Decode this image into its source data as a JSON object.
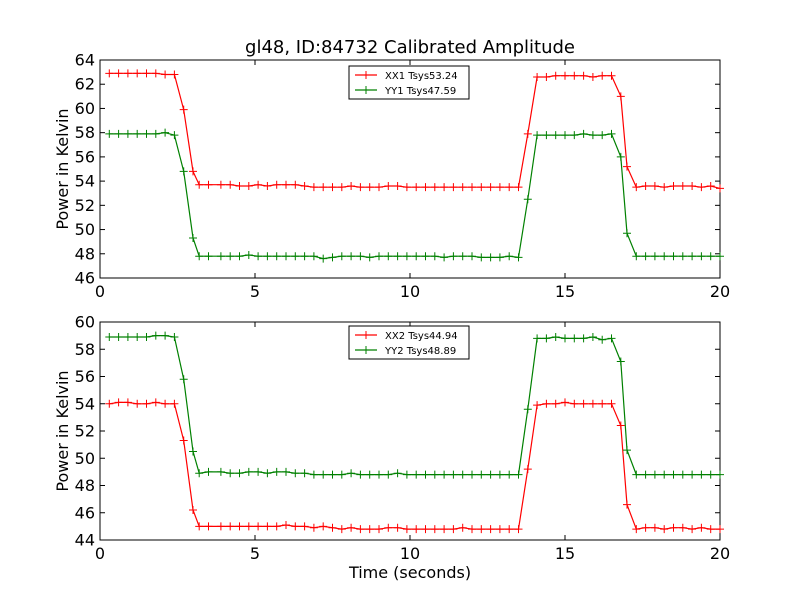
{
  "title": "gl48, ID:84732 Calibrated Amplitude",
  "chart_data": [
    {
      "type": "line",
      "title": "gl48, ID:84732 Calibrated Amplitude",
      "xlabel": "",
      "ylabel": "Power in Kelvin",
      "xlim": [
        0,
        20
      ],
      "ylim": [
        46,
        64
      ],
      "xticks": [
        "0",
        "5",
        "10",
        "15",
        "20"
      ],
      "yticks": [
        "46",
        "48",
        "50",
        "52",
        "54",
        "56",
        "58",
        "60",
        "62",
        "64"
      ],
      "legend_position": "top-center",
      "series": [
        {
          "name": "XX1 Tsys53.24",
          "color": "#ff0000",
          "x": [
            0.3,
            0.6,
            0.9,
            1.2,
            1.5,
            1.8,
            2.1,
            2.4,
            2.7,
            3.0,
            3.2,
            3.5,
            3.9,
            4.2,
            4.5,
            4.8,
            5.1,
            5.4,
            5.7,
            6.0,
            6.3,
            6.6,
            6.9,
            7.2,
            7.5,
            7.8,
            8.1,
            8.4,
            8.7,
            9.0,
            9.3,
            9.6,
            9.9,
            10.2,
            10.5,
            10.8,
            11.1,
            11.4,
            11.7,
            12.0,
            12.3,
            12.6,
            12.9,
            13.2,
            13.5,
            13.8,
            14.1,
            14.4,
            14.7,
            15.0,
            15.3,
            15.6,
            15.9,
            16.2,
            16.5,
            16.8,
            17.0,
            17.3,
            17.6,
            17.9,
            18.2,
            18.5,
            18.8,
            19.1,
            19.4,
            19.7,
            20.0
          ],
          "values": [
            62.9,
            62.9,
            62.9,
            62.9,
            62.9,
            62.9,
            62.8,
            62.8,
            59.9,
            54.8,
            53.7,
            53.7,
            53.7,
            53.7,
            53.6,
            53.6,
            53.7,
            53.6,
            53.7,
            53.7,
            53.7,
            53.6,
            53.5,
            53.5,
            53.5,
            53.5,
            53.6,
            53.5,
            53.5,
            53.5,
            53.6,
            53.6,
            53.5,
            53.5,
            53.5,
            53.5,
            53.5,
            53.5,
            53.5,
            53.5,
            53.5,
            53.5,
            53.5,
            53.5,
            53.5,
            57.9,
            62.6,
            62.6,
            62.7,
            62.7,
            62.7,
            62.7,
            62.6,
            62.7,
            62.7,
            61.0,
            55.2,
            53.5,
            53.6,
            53.6,
            53.5,
            53.6,
            53.6,
            53.6,
            53.5,
            53.6,
            53.4
          ]
        },
        {
          "name": "YY1 Tsys47.59",
          "color": "#008000",
          "x": [
            0.3,
            0.6,
            0.9,
            1.2,
            1.5,
            1.8,
            2.1,
            2.4,
            2.7,
            3.0,
            3.2,
            3.5,
            3.9,
            4.2,
            4.5,
            4.8,
            5.1,
            5.4,
            5.7,
            6.0,
            6.3,
            6.6,
            6.9,
            7.2,
            7.5,
            7.8,
            8.1,
            8.4,
            8.7,
            9.0,
            9.3,
            9.6,
            9.9,
            10.2,
            10.5,
            10.8,
            11.1,
            11.4,
            11.7,
            12.0,
            12.3,
            12.6,
            12.9,
            13.2,
            13.5,
            13.8,
            14.1,
            14.4,
            14.7,
            15.0,
            15.3,
            15.6,
            15.9,
            16.2,
            16.5,
            16.8,
            17.0,
            17.3,
            17.6,
            17.9,
            18.2,
            18.5,
            18.8,
            19.1,
            19.4,
            19.7,
            20.0
          ],
          "values": [
            57.9,
            57.9,
            57.9,
            57.9,
            57.9,
            57.9,
            58.0,
            57.8,
            54.8,
            49.3,
            47.8,
            47.8,
            47.8,
            47.8,
            47.8,
            47.9,
            47.8,
            47.8,
            47.8,
            47.8,
            47.8,
            47.8,
            47.8,
            47.6,
            47.7,
            47.8,
            47.8,
            47.8,
            47.7,
            47.8,
            47.8,
            47.8,
            47.8,
            47.8,
            47.8,
            47.8,
            47.7,
            47.8,
            47.8,
            47.8,
            47.7,
            47.7,
            47.7,
            47.8,
            47.7,
            52.5,
            57.8,
            57.8,
            57.8,
            57.8,
            57.8,
            57.9,
            57.8,
            57.8,
            57.9,
            56.0,
            49.7,
            47.8,
            47.8,
            47.8,
            47.8,
            47.8,
            47.8,
            47.8,
            47.8,
            47.8,
            47.8
          ]
        }
      ]
    },
    {
      "type": "line",
      "title": "",
      "xlabel": "Time (seconds)",
      "ylabel": "Power in Kelvin",
      "xlim": [
        0,
        20
      ],
      "ylim": [
        44,
        60
      ],
      "xticks": [
        "0",
        "5",
        "10",
        "15",
        "20"
      ],
      "yticks": [
        "44",
        "46",
        "48",
        "50",
        "52",
        "54",
        "56",
        "58",
        "60"
      ],
      "legend_position": "top-center",
      "series": [
        {
          "name": "XX2 Tsys44.94",
          "color": "#ff0000",
          "x": [
            0.3,
            0.6,
            0.9,
            1.2,
            1.5,
            1.8,
            2.1,
            2.4,
            2.7,
            3.0,
            3.2,
            3.5,
            3.9,
            4.2,
            4.5,
            4.8,
            5.1,
            5.4,
            5.7,
            6.0,
            6.3,
            6.6,
            6.9,
            7.2,
            7.5,
            7.8,
            8.1,
            8.4,
            8.7,
            9.0,
            9.3,
            9.6,
            9.9,
            10.2,
            10.5,
            10.8,
            11.1,
            11.4,
            11.7,
            12.0,
            12.3,
            12.6,
            12.9,
            13.2,
            13.5,
            13.8,
            14.1,
            14.4,
            14.7,
            15.0,
            15.3,
            15.6,
            15.9,
            16.2,
            16.5,
            16.8,
            17.0,
            17.3,
            17.6,
            17.9,
            18.2,
            18.5,
            18.8,
            19.1,
            19.4,
            19.7,
            20.0
          ],
          "values": [
            54.0,
            54.1,
            54.1,
            54.0,
            54.0,
            54.1,
            54.0,
            54.0,
            51.3,
            46.2,
            45.0,
            45.0,
            45.0,
            45.0,
            45.0,
            45.0,
            45.0,
            45.0,
            45.0,
            45.1,
            45.0,
            45.0,
            44.9,
            45.0,
            44.9,
            44.8,
            44.9,
            44.8,
            44.8,
            44.8,
            44.9,
            44.9,
            44.8,
            44.8,
            44.8,
            44.8,
            44.8,
            44.8,
            44.9,
            44.8,
            44.8,
            44.8,
            44.8,
            44.8,
            44.8,
            49.2,
            53.9,
            54.0,
            54.0,
            54.1,
            54.0,
            54.0,
            54.0,
            54.0,
            54.0,
            52.4,
            46.6,
            44.8,
            44.9,
            44.9,
            44.8,
            44.9,
            44.9,
            44.8,
            44.9,
            44.8,
            44.8
          ]
        },
        {
          "name": "YY2 Tsys48.89",
          "color": "#008000",
          "x": [
            0.3,
            0.6,
            0.9,
            1.2,
            1.5,
            1.8,
            2.1,
            2.4,
            2.7,
            3.0,
            3.2,
            3.5,
            3.9,
            4.2,
            4.5,
            4.8,
            5.1,
            5.4,
            5.7,
            6.0,
            6.3,
            6.6,
            6.9,
            7.2,
            7.5,
            7.8,
            8.1,
            8.4,
            8.7,
            9.0,
            9.3,
            9.6,
            9.9,
            10.2,
            10.5,
            10.8,
            11.1,
            11.4,
            11.7,
            12.0,
            12.3,
            12.6,
            12.9,
            13.2,
            13.5,
            13.8,
            14.1,
            14.4,
            14.7,
            15.0,
            15.3,
            15.6,
            15.9,
            16.2,
            16.5,
            16.8,
            17.0,
            17.3,
            17.6,
            17.9,
            18.2,
            18.5,
            18.8,
            19.1,
            19.4,
            19.7,
            20.0
          ],
          "values": [
            58.9,
            58.9,
            58.9,
            58.9,
            58.9,
            59.0,
            59.0,
            58.9,
            55.8,
            50.5,
            48.9,
            49.0,
            49.0,
            48.9,
            48.9,
            49.0,
            49.0,
            48.9,
            49.0,
            49.0,
            48.9,
            48.9,
            48.8,
            48.8,
            48.8,
            48.8,
            48.9,
            48.8,
            48.8,
            48.8,
            48.8,
            48.9,
            48.8,
            48.8,
            48.8,
            48.8,
            48.8,
            48.8,
            48.8,
            48.8,
            48.8,
            48.8,
            48.8,
            48.8,
            48.8,
            53.6,
            58.8,
            58.8,
            58.9,
            58.8,
            58.8,
            58.8,
            58.9,
            58.7,
            58.8,
            57.1,
            50.6,
            48.8,
            48.8,
            48.8,
            48.8,
            48.8,
            48.8,
            48.8,
            48.8,
            48.8,
            48.8
          ]
        }
      ]
    }
  ]
}
